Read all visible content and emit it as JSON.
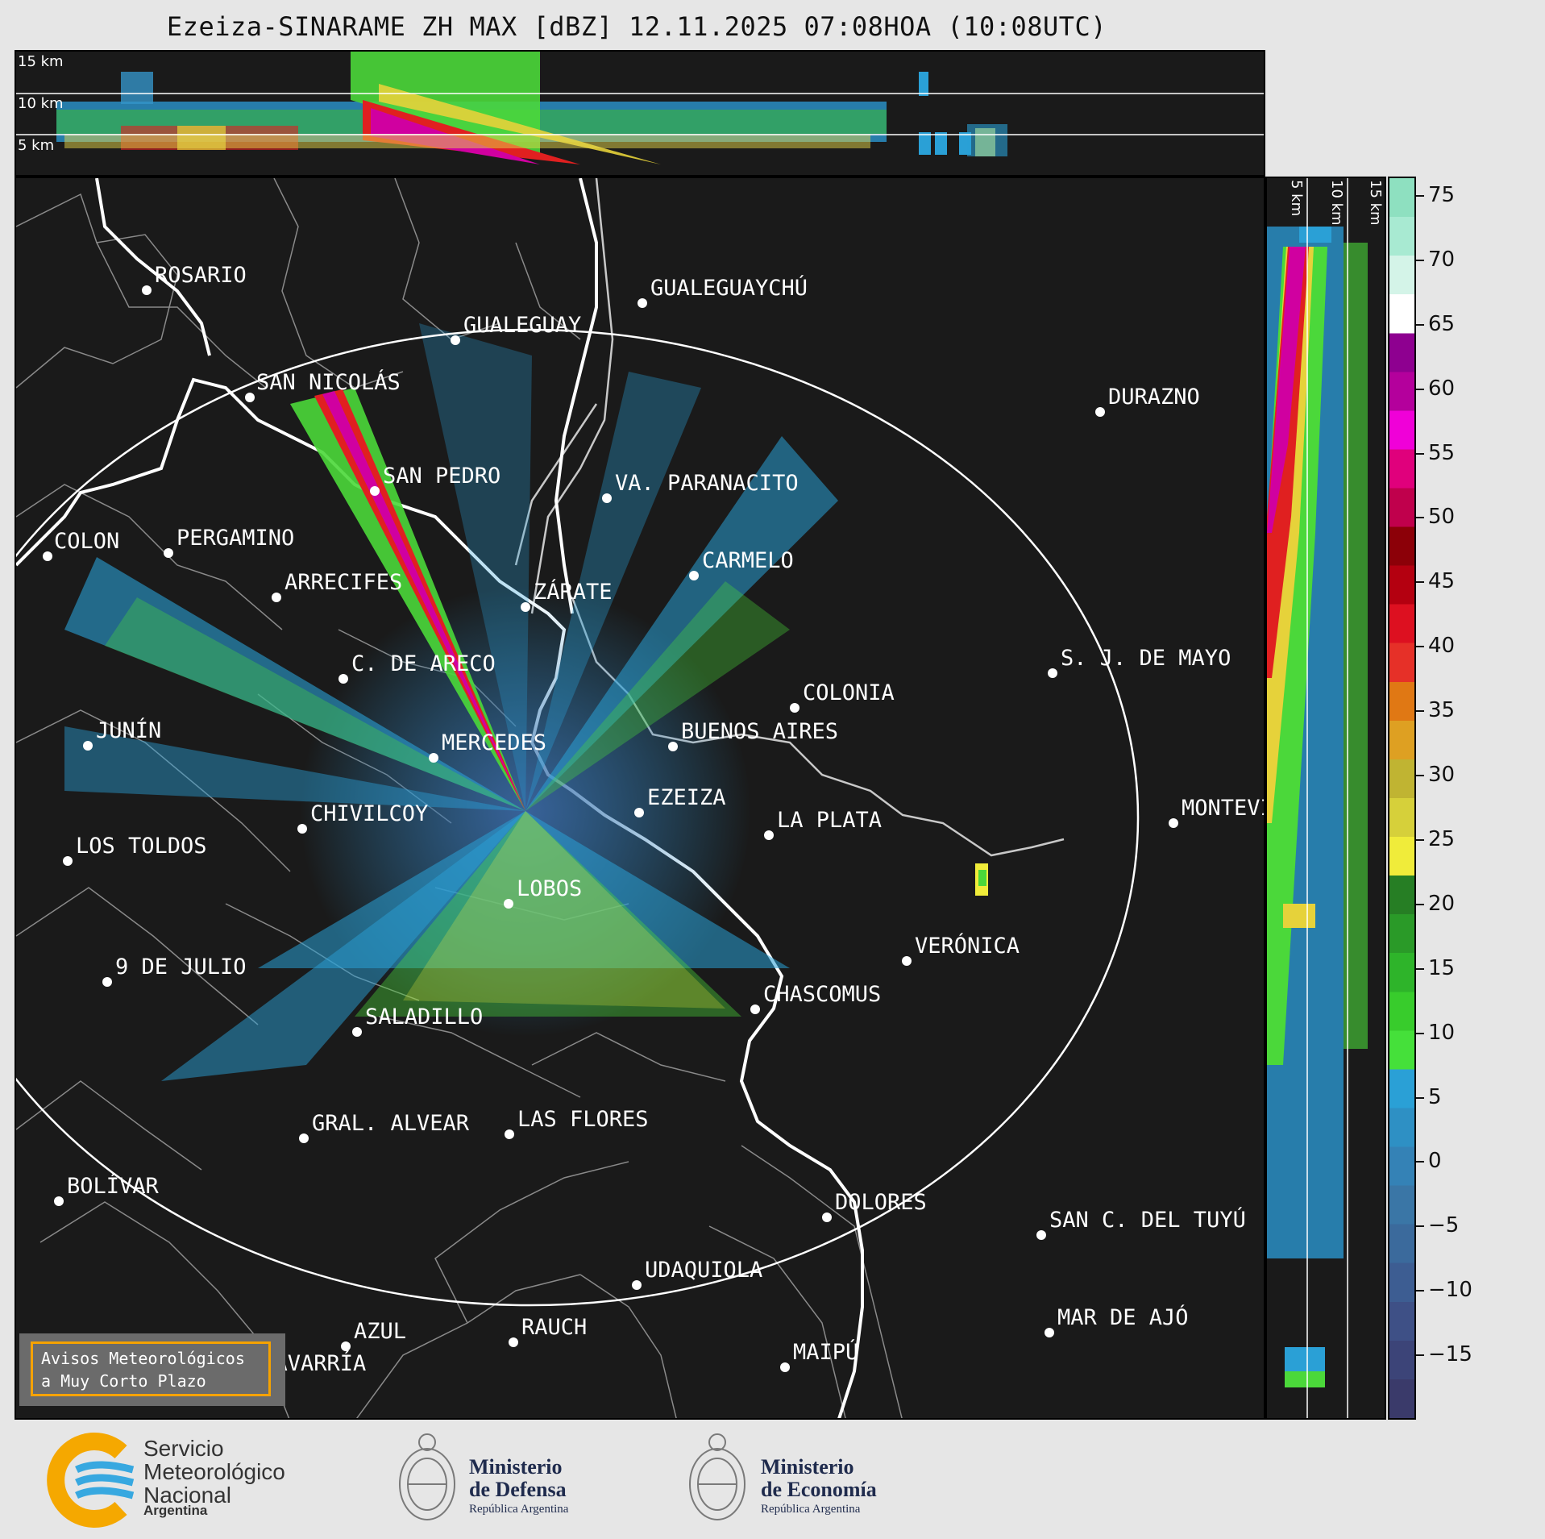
{
  "title": "Ezeiza-SINARAME ZH MAX [dBZ] 12.11.2025 07:08HOA (10:08UTC)",
  "top_panel": {
    "height_labels": [
      "15 km",
      "10 km",
      "5 km"
    ]
  },
  "side_panel": {
    "height_labels": [
      "5 km",
      "10 km",
      "15 km"
    ]
  },
  "colorbar": {
    "unit": "dBZ",
    "ticks": [
      75,
      70,
      65,
      60,
      55,
      50,
      45,
      40,
      35,
      30,
      25,
      20,
      15,
      10,
      5,
      0,
      "−5",
      "−10",
      "−15"
    ],
    "range": [
      -20,
      76.5
    ],
    "colors": [
      "#3a3a6a",
      "#3c4478",
      "#3e5086",
      "#3d5d92",
      "#3b6a9c",
      "#3a76a6",
      "#3482b6",
      "#2e90c4",
      "#2aa0d6",
      "#45e03a",
      "#38cc2c",
      "#2eb42a",
      "#2a9a28",
      "#267e24",
      "#f0ec3a",
      "#d6d03a",
      "#c0b432",
      "#dea022",
      "#e07814",
      "#e63028",
      "#dd1020",
      "#b40010",
      "#8c0008",
      "#c0004c",
      "#e0007c",
      "#f000d8",
      "#b4009c",
      "#8e0090",
      "#ffffff",
      "#d4f4e8",
      "#a8ead2",
      "#8ee0c0"
    ]
  },
  "map": {
    "range_ring_km": 240,
    "cities": [
      {
        "name": "ROSARIO"
      },
      {
        "name": "GUALEGUAYCHÚ"
      },
      {
        "name": "GUALEGUAY"
      },
      {
        "name": "SAN NICOLÁS"
      },
      {
        "name": "DURAZNO"
      },
      {
        "name": "SAN PEDRO"
      },
      {
        "name": "VA. PARANACITO"
      },
      {
        "name": "COLON"
      },
      {
        "name": "PERGAMINO"
      },
      {
        "name": "CARMELO"
      },
      {
        "name": "ARRECIFES"
      },
      {
        "name": "ZÁRATE"
      },
      {
        "name": "S. J. DE MAYO"
      },
      {
        "name": "C. DE ARECO"
      },
      {
        "name": "COLONIA"
      },
      {
        "name": "JUNÍN"
      },
      {
        "name": "BUENOS AIRES"
      },
      {
        "name": "MERCEDES"
      },
      {
        "name": "EZEIZA"
      },
      {
        "name": "MONTEVIDEO"
      },
      {
        "name": "CHIVILCOY"
      },
      {
        "name": "LA PLATA"
      },
      {
        "name": "LOS TOLDOS"
      },
      {
        "name": "LOBOS"
      },
      {
        "name": "VERÓNICA"
      },
      {
        "name": "9 DE JULIO"
      },
      {
        "name": "CHASCOMUS"
      },
      {
        "name": "SALADILLO"
      },
      {
        "name": "GRAL. ALVEAR"
      },
      {
        "name": "LAS FLORES"
      },
      {
        "name": "BOLÍVAR"
      },
      {
        "name": "DOLORES"
      },
      {
        "name": "SAN C. DEL TUYÚ"
      },
      {
        "name": "UDAQUIOLA"
      },
      {
        "name": "MAR DE AJÓ"
      },
      {
        "name": "AZUL"
      },
      {
        "name": "RAUCH"
      },
      {
        "name": "MAIPÚ"
      },
      {
        "name": "OLAVARRÍA"
      }
    ]
  },
  "badge": {
    "line1": "Avisos Meteorológicos",
    "line2": "a Muy Corto Plazo"
  },
  "footer": {
    "smn": {
      "line1": "Servicio",
      "line2": "Meteorológico",
      "line3": "Nacional",
      "sub": "Argentina"
    },
    "defensa": {
      "line1": "Ministerio",
      "line2": "de Defensa",
      "sub": "República Argentina"
    },
    "economia": {
      "line1": "Ministerio",
      "line2": "de Economía",
      "sub": "República Argentina"
    }
  }
}
